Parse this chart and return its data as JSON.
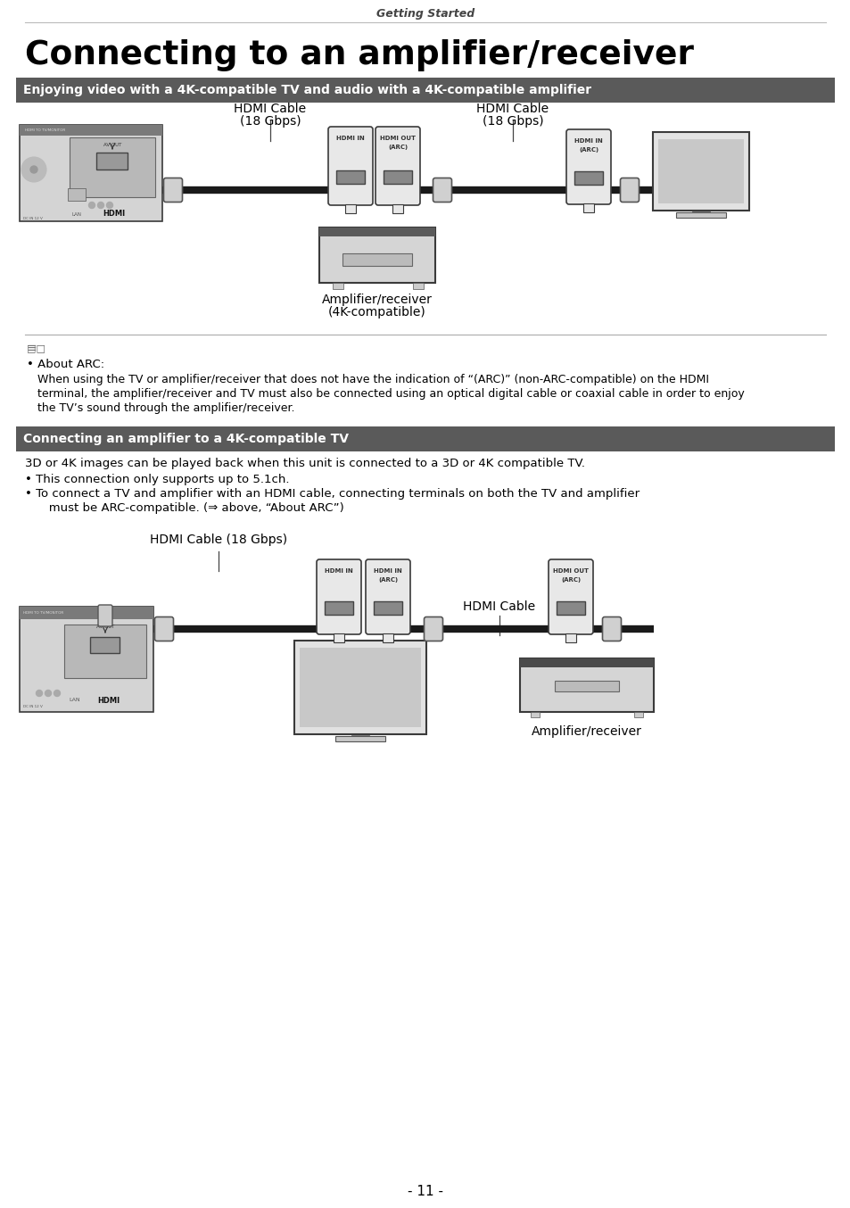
{
  "page_header": "Getting Started",
  "main_title": "Connecting to an amplifier/receiver",
  "section1_header": "Enjoying video with a 4K-compatible TV and audio with a 4K-compatible amplifier",
  "section2_header": "Connecting an amplifier to a 4K-compatible TV",
  "section2_body1": "3D or 4K images can be played back when this unit is connected to a 3D or 4K compatible TV.",
  "section2_bullet1": "• This connection only supports up to 5.1ch.",
  "section2_bullet2_l1": "• To connect a TV and amplifier with an HDMI cable, connecting terminals on both the TV and amplifier",
  "section2_bullet2_l2": "   must be ARC-compatible. (⇒ above, “About ARC”)",
  "note_bullet": "• About ARC:",
  "note_text_l1": "When using the TV or amplifier/receiver that does not have the indication of “(ARC)” (non-ARC-compatible) on the HDMI",
  "note_text_l2": "terminal, the amplifier/receiver and TV must also be connected using an optical digital cable or coaxial cable in order to enjoy",
  "note_text_l3": "the TV’s sound through the amplifier/receiver.",
  "d1_hdmi_label1_l1": "HDMI Cable",
  "d1_hdmi_label1_l2": "(18 Gbps)",
  "d1_hdmi_label2_l1": "HDMI Cable",
  "d1_hdmi_label2_l2": "(18 Gbps)",
  "d1_port1_label": "HDMI IN",
  "d1_port2_l1": "HDMI OUT",
  "d1_port2_l2": "(ARC)",
  "d1_port3_l1": "HDMI IN",
  "d1_port3_l2": "(ARC)",
  "d1_amp_label_l1": "Amplifier/receiver",
  "d1_amp_label_l2": "(4K-compatible)",
  "d2_hdmi_label": "HDMI Cable (18 Gbps)",
  "d2_port1_label": "HDMI IN",
  "d2_port2_l1": "HDMI IN",
  "d2_port2_l2": "(ARC)",
  "d2_port3_l1": "HDMI OUT",
  "d2_port3_l2": "(ARC)",
  "d2_hdmi_cable": "HDMI Cable",
  "d2_amp_label": "Amplifier/receiver",
  "page_number": "- 11 -",
  "bg_color": "#ffffff",
  "header_bg": "#5a5a5a",
  "header_text_color": "#ffffff",
  "text_color": "#000000",
  "cable_color": "#1a1a1a",
  "device_gray_light": "#d4d4d4",
  "device_gray_mid": "#b8b8b8",
  "device_gray_dark": "#7a7a7a",
  "device_stroke": "#3a3a3a",
  "port_housing_fill": "#e8e8e8",
  "port_socket_fill": "#888888",
  "connector_fill": "#d0d0d0",
  "sep_line_color": "#aaaaaa"
}
